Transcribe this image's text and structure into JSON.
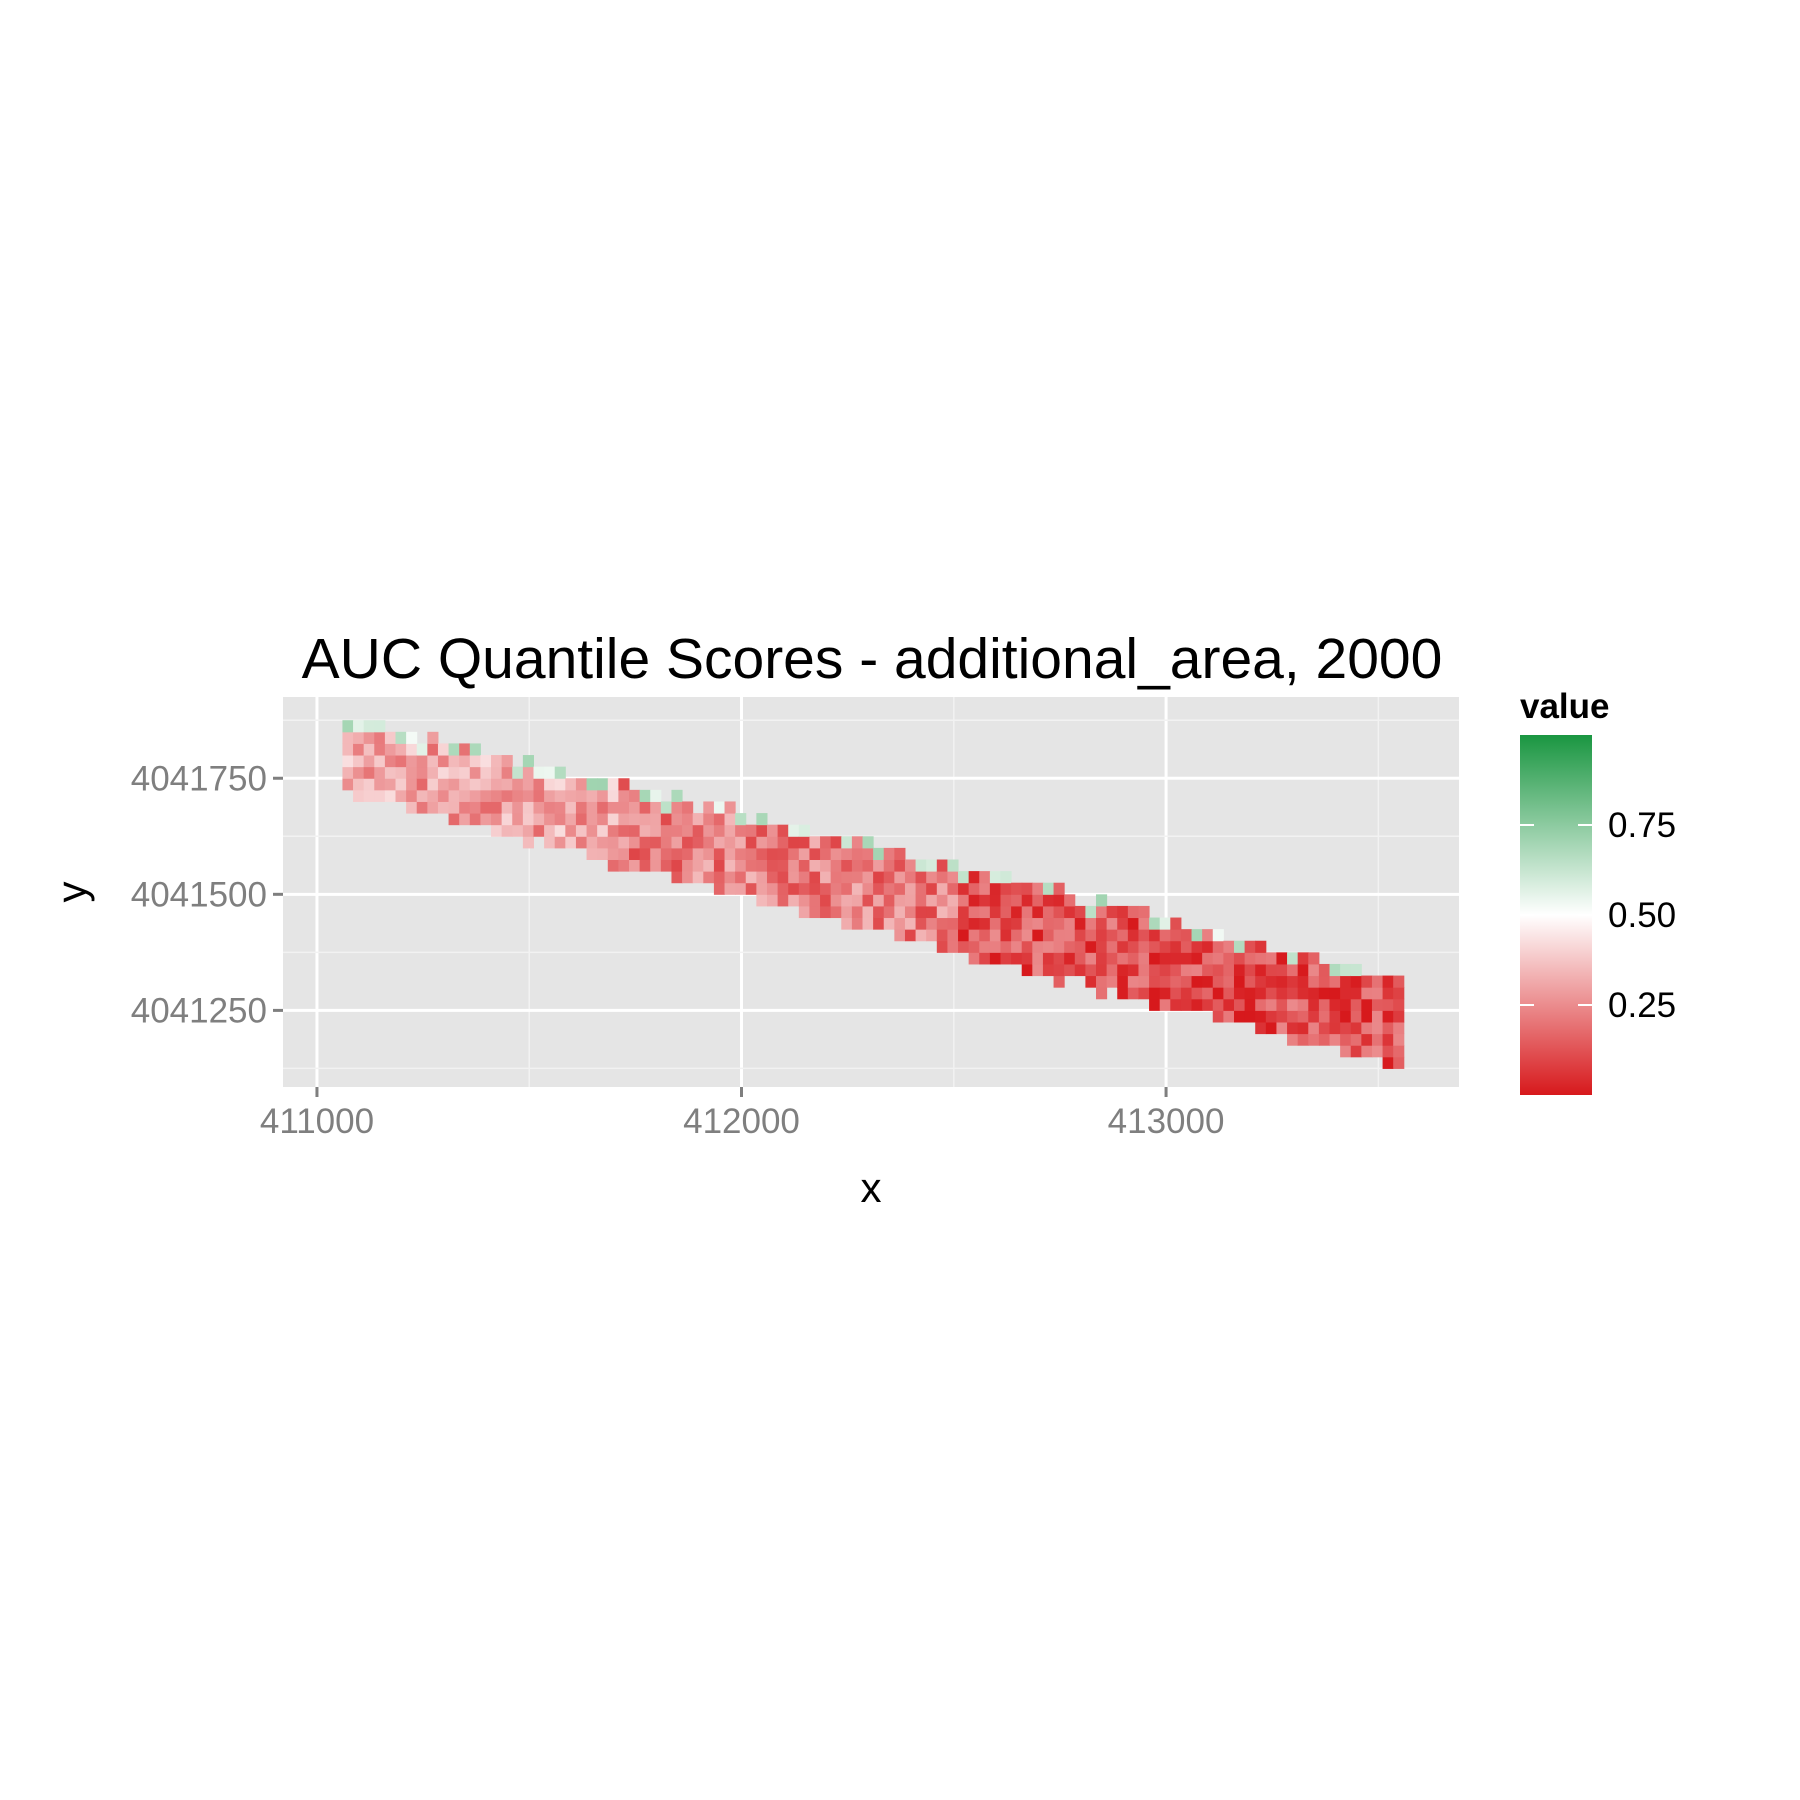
{
  "chart_data": {
    "type": "heatmap",
    "title": "AUC Quantile Scores - additional_area, 2000",
    "xlabel": "x",
    "ylabel": "y",
    "xlim": [
      410920,
      413690
    ],
    "ylim": [
      4041085,
      4041925
    ],
    "x_ticks": [
      411000,
      412000,
      413000
    ],
    "x_tick_labels": [
      "411000",
      "412000",
      "413000"
    ],
    "y_ticks": [
      4041250,
      4041500,
      4041750
    ],
    "y_tick_labels": [
      "4041250",
      "4041500",
      "4041750"
    ],
    "grid": true,
    "cell_size": 25,
    "legend": {
      "title": "value",
      "position": "right",
      "range": [
        0,
        1
      ],
      "breaks": [
        0.25,
        0.5,
        0.75
      ],
      "labels": [
        "0.25",
        "0.50",
        "0.75"
      ],
      "colors": {
        "low": "#d7191c",
        "mid": "#ffffff",
        "high": "#1a9641"
      }
    },
    "strip": {
      "x_start": 411060,
      "x_end": 413560,
      "center_start": 4041800,
      "center_end": 4041220,
      "halfwidth_start": 80,
      "halfwidth_end": 100,
      "value_zones": [
        {
          "x_from": 411060,
          "x_to": 411700,
          "mean": 0.3
        },
        {
          "x_from": 411700,
          "x_to": 412500,
          "mean": 0.22
        },
        {
          "x_from": 412500,
          "x_to": 413560,
          "mean": 0.12
        }
      ],
      "upper_edge_value": 0.62
    }
  }
}
